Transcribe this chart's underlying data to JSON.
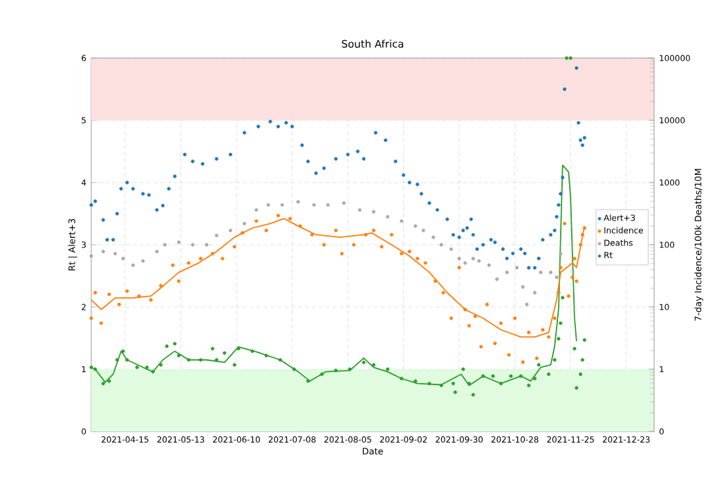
{
  "chart_data": {
    "type": "scatter",
    "title": "South Africa",
    "xlabel": "Date",
    "ylabel": "Rt | Alert+3",
    "y2label": "7-day Incidence/100k Deaths/10M",
    "xlim": [
      "2021-03-29",
      "2022-01-06"
    ],
    "xticks": [
      "2021-04-15",
      "2021-05-13",
      "2021-06-10",
      "2021-07-08",
      "2021-08-05",
      "2021-09-02",
      "2021-09-30",
      "2021-10-28",
      "2021-11-25",
      "2021-12-23"
    ],
    "ylim": [
      0,
      6
    ],
    "yticks": [
      0,
      1,
      2,
      3,
      4,
      5,
      6
    ],
    "log": "y2",
    "y2lim": [
      0.1,
      100000
    ],
    "y2ticks": [
      {
        "value": 0.1,
        "label": "0"
      },
      1,
      10,
      100,
      1000,
      10000,
      100000
    ],
    "grid": true,
    "legend": "right",
    "bands": [
      {
        "axis": "y",
        "from": 5,
        "to": 6,
        "color": "#fde0e0"
      },
      {
        "axis": "y",
        "from": 0,
        "to": 1,
        "color": "#e0fbe0"
      }
    ],
    "series": [
      {
        "name": "Alert+3",
        "type": "scatter",
        "marker": "circle",
        "color": "#1f77b4",
        "x": [
          "2021-03-29",
          "2021-03-31",
          "2021-04-04",
          "2021-04-06",
          "2021-04-09",
          "2021-04-11",
          "2021-04-13",
          "2021-04-16",
          "2021-04-19",
          "2021-04-24",
          "2021-04-27",
          "2021-05-01",
          "2021-05-04",
          "2021-05-07",
          "2021-05-10",
          "2021-05-15",
          "2021-05-19",
          "2021-05-24",
          "2021-05-31",
          "2021-06-07",
          "2021-06-14",
          "2021-06-21",
          "2021-06-27",
          "2021-07-01",
          "2021-07-05",
          "2021-07-08",
          "2021-07-13",
          "2021-07-16",
          "2021-07-20",
          "2021-07-24",
          "2021-07-30",
          "2021-08-05",
          "2021-08-10",
          "2021-08-13",
          "2021-08-19",
          "2021-08-24",
          "2021-08-29",
          "2021-09-02",
          "2021-09-05",
          "2021-09-09",
          "2021-09-11",
          "2021-09-15",
          "2021-09-19",
          "2021-09-24",
          "2021-09-27",
          "2021-09-30",
          "2021-10-02",
          "2021-10-04",
          "2021-10-06",
          "2021-10-07",
          "2021-10-09",
          "2021-10-12",
          "2021-10-16",
          "2021-10-18",
          "2021-10-22",
          "2021-10-24",
          "2021-10-27",
          "2021-10-31",
          "2021-11-02",
          "2021-11-04",
          "2021-11-07",
          "2021-11-09",
          "2021-11-11",
          "2021-11-15",
          "2021-11-17",
          "2021-11-18",
          "2021-11-19",
          "2021-11-20",
          "2021-11-21",
          "2021-11-22",
          "2021-11-28",
          "2021-11-29",
          "2021-11-30",
          "2021-12-01",
          "2021-12-02"
        ],
        "values": [
          3.64,
          3.7,
          3.4,
          3.08,
          3.08,
          3.5,
          3.9,
          4.0,
          3.9,
          3.82,
          3.8,
          3.56,
          3.63,
          3.9,
          4.1,
          4.45,
          4.34,
          4.3,
          4.38,
          4.45,
          4.8,
          4.9,
          4.98,
          4.9,
          4.96,
          4.9,
          4.6,
          4.34,
          4.15,
          4.23,
          4.38,
          4.45,
          4.5,
          4.38,
          4.8,
          4.68,
          4.34,
          4.12,
          4.0,
          3.97,
          3.82,
          3.67,
          3.56,
          3.41,
          3.16,
          3.12,
          3.23,
          3.27,
          3.41,
          3.16,
          2.93,
          3.0,
          3.08,
          3.04,
          2.93,
          2.78,
          2.86,
          2.93,
          2.86,
          2.63,
          2.63,
          2.78,
          3.08,
          3.16,
          3.23,
          3.45,
          3.64,
          3.82,
          4.08,
          5.5,
          5.84,
          4.96,
          4.68,
          4.6,
          4.72
        ]
      },
      {
        "name": "Incidence",
        "type": "scatter",
        "marker": "circle",
        "axis": "y2",
        "color": "#ff7f0e",
        "x": [
          "2021-03-29",
          "2021-03-31",
          "2021-04-03",
          "2021-04-07",
          "2021-04-12",
          "2021-04-16",
          "2021-04-22",
          "2021-04-28",
          "2021-05-03",
          "2021-05-09",
          "2021-05-12",
          "2021-05-17",
          "2021-05-23",
          "2021-05-29",
          "2021-06-03",
          "2021-06-09",
          "2021-06-13",
          "2021-06-20",
          "2021-06-25",
          "2021-07-01",
          "2021-07-07",
          "2021-07-12",
          "2021-07-18",
          "2021-07-24",
          "2021-07-30",
          "2021-08-02",
          "2021-08-08",
          "2021-08-14",
          "2021-08-18",
          "2021-08-22",
          "2021-08-27",
          "2021-09-01",
          "2021-09-05",
          "2021-09-09",
          "2021-09-13",
          "2021-09-18",
          "2021-09-22",
          "2021-09-26",
          "2021-09-30",
          "2021-10-03",
          "2021-10-05",
          "2021-10-08",
          "2021-10-11",
          "2021-10-14",
          "2021-10-18",
          "2021-10-21",
          "2021-10-25",
          "2021-10-28",
          "2021-11-01",
          "2021-11-04",
          "2021-11-08",
          "2021-11-11",
          "2021-11-14",
          "2021-11-17",
          "2021-11-19",
          "2021-11-20",
          "2021-11-22",
          "2021-11-24",
          "2021-11-26",
          "2021-11-27",
          "2021-11-28",
          "2021-11-30",
          "2021-12-01",
          "2021-12-02"
        ],
        "values": [
          6.6,
          17,
          5.5,
          16,
          11,
          18,
          15,
          13,
          22,
          47,
          26,
          51,
          60,
          72,
          60,
          93,
          155,
          240,
          170,
          295,
          263,
          200,
          145,
          100,
          170,
          72,
          100,
          145,
          170,
          93,
          145,
          72,
          78,
          60,
          51,
          26,
          17,
          6.6,
          43,
          9.1,
          5.0,
          7.1,
          2.3,
          11,
          2.6,
          5.5,
          1.7,
          6.6,
          1.3,
          3.9,
          1.5,
          4.3,
          3.3,
          6.6,
          17,
          43,
          219,
          15,
          30,
          60,
          26,
          100,
          145,
          186
        ]
      },
      {
        "type": "line",
        "marker": "none",
        "axis": "y2",
        "color": "#ff7f0e",
        "x": [
          "2021-03-29",
          "2021-04-03",
          "2021-04-10",
          "2021-04-19",
          "2021-04-28",
          "2021-05-05",
          "2021-05-12",
          "2021-05-22",
          "2021-05-31",
          "2021-06-09",
          "2021-06-18",
          "2021-06-27",
          "2021-07-04",
          "2021-07-11",
          "2021-07-20",
          "2021-08-01",
          "2021-08-13",
          "2021-08-17",
          "2021-08-27",
          "2021-09-05",
          "2021-09-15",
          "2021-09-24",
          "2021-10-03",
          "2021-10-12",
          "2021-10-21",
          "2021-10-31",
          "2021-11-07",
          "2021-11-14",
          "2021-11-18",
          "2021-11-20",
          "2021-11-26",
          "2021-11-28",
          "2021-12-02"
        ],
        "values": [
          13,
          9.1,
          14,
          14,
          15,
          23,
          36,
          51,
          78,
          132,
          186,
          219,
          263,
          200,
          145,
          132,
          145,
          155,
          100,
          66,
          36,
          17,
          9.1,
          6.6,
          4.3,
          3.3,
          3.3,
          3.9,
          13,
          36,
          51,
          43,
          200
        ]
      },
      {
        "name": "Deaths",
        "type": "scatter",
        "marker": "circle",
        "axis": "y2",
        "color": "#a9a9a9",
        "x": [
          "2021-03-29",
          "2021-04-04",
          "2021-04-10",
          "2021-04-14",
          "2021-04-19",
          "2021-04-24",
          "2021-05-01",
          "2021-05-05",
          "2021-05-12",
          "2021-05-19",
          "2021-05-26",
          "2021-05-31",
          "2021-06-07",
          "2021-06-14",
          "2021-06-20",
          "2021-06-26",
          "2021-07-03",
          "2021-07-11",
          "2021-07-19",
          "2021-07-26",
          "2021-08-03",
          "2021-08-11",
          "2021-08-18",
          "2021-08-25",
          "2021-09-01",
          "2021-09-08",
          "2021-09-12",
          "2021-09-17",
          "2021-09-21",
          "2021-09-26",
          "2021-09-30",
          "2021-10-03",
          "2021-10-07",
          "2021-10-10",
          "2021-10-15",
          "2021-10-19",
          "2021-10-24",
          "2021-10-29",
          "2021-11-01",
          "2021-11-03",
          "2021-11-07",
          "2021-11-10",
          "2021-11-15",
          "2021-11-18",
          "2021-11-20"
        ],
        "values": [
          66,
          78,
          72,
          60,
          47,
          55,
          78,
          100,
          110,
          100,
          100,
          141,
          170,
          219,
          363,
          437,
          437,
          490,
          437,
          437,
          468,
          363,
          339,
          282,
          240,
          200,
          170,
          132,
          100,
          85,
          60,
          51,
          60,
          55,
          47,
          28,
          36,
          43,
          21,
          11,
          17,
          36,
          36,
          30,
          72
        ]
      },
      {
        "name": "Rt",
        "type": "scatter",
        "marker": "circle",
        "color": "#2ca02c",
        "x": [
          "2021-03-29",
          "2021-03-31",
          "2021-04-04",
          "2021-04-07",
          "2021-04-11",
          "2021-04-14",
          "2021-04-16",
          "2021-04-21",
          "2021-04-26",
          "2021-04-29",
          "2021-05-03",
          "2021-05-06",
          "2021-05-10",
          "2021-05-12",
          "2021-05-17",
          "2021-05-23",
          "2021-05-29",
          "2021-05-31",
          "2021-06-04",
          "2021-06-09",
          "2021-06-11",
          "2021-06-18",
          "2021-06-25",
          "2021-07-02",
          "2021-07-09",
          "2021-07-16",
          "2021-07-23",
          "2021-07-30",
          "2021-08-06",
          "2021-08-13",
          "2021-08-18",
          "2021-08-25",
          "2021-09-01",
          "2021-09-08",
          "2021-09-15",
          "2021-09-21",
          "2021-09-27",
          "2021-09-28",
          "2021-10-02",
          "2021-10-05",
          "2021-10-07",
          "2021-10-12",
          "2021-10-17",
          "2021-10-21",
          "2021-10-26",
          "2021-10-31",
          "2021-11-04",
          "2021-11-07",
          "2021-11-09",
          "2021-11-14",
          "2021-11-17",
          "2021-11-19",
          "2021-11-20",
          "2021-11-21",
          "2021-11-23",
          "2021-11-25",
          "2021-11-27",
          "2021-11-28",
          "2021-11-30",
          "2021-12-01",
          "2021-12-02"
        ],
        "values": [
          1.03,
          1.0,
          0.77,
          0.81,
          1.15,
          1.29,
          1.15,
          1.03,
          1.03,
          0.96,
          1.07,
          1.37,
          1.41,
          1.22,
          1.15,
          1.15,
          1.33,
          1.15,
          1.26,
          1.07,
          1.33,
          1.29,
          1.22,
          1.15,
          1.0,
          0.81,
          0.92,
          0.98,
          1.0,
          1.11,
          1.07,
          1.0,
          0.85,
          0.81,
          0.77,
          0.74,
          0.77,
          0.63,
          1.0,
          0.77,
          0.59,
          0.89,
          0.89,
          0.77,
          0.89,
          0.89,
          0.74,
          0.85,
          1.07,
          0.92,
          1.15,
          1.49,
          1.74,
          2.15,
          6.0,
          6.0,
          1.33,
          0.7,
          0.92,
          1.15,
          1.47
        ]
      },
      {
        "type": "line",
        "marker": "none",
        "color": "#2ca02c",
        "x": [
          "2021-03-29",
          "2021-03-31",
          "2021-04-05",
          "2021-04-09",
          "2021-04-13",
          "2021-04-16",
          "2021-04-24",
          "2021-04-29",
          "2021-05-04",
          "2021-05-10",
          "2021-05-17",
          "2021-05-26",
          "2021-06-04",
          "2021-06-11",
          "2021-06-20",
          "2021-07-02",
          "2021-07-11",
          "2021-07-17",
          "2021-07-25",
          "2021-08-06",
          "2021-08-13",
          "2021-08-18",
          "2021-08-25",
          "2021-09-01",
          "2021-09-09",
          "2021-09-21",
          "2021-10-01",
          "2021-10-05",
          "2021-10-12",
          "2021-10-21",
          "2021-10-31",
          "2021-11-05",
          "2021-11-10",
          "2021-11-15",
          "2021-11-17",
          "2021-11-19",
          "2021-11-21",
          "2021-11-24",
          "2021-11-25",
          "2021-11-27",
          "2021-11-28"
        ],
        "values": [
          1.03,
          1.0,
          0.79,
          0.92,
          1.29,
          1.15,
          1.03,
          0.96,
          1.15,
          1.29,
          1.15,
          1.15,
          1.11,
          1.36,
          1.28,
          1.15,
          0.96,
          0.81,
          0.96,
          0.98,
          1.18,
          1.03,
          0.96,
          0.85,
          0.77,
          0.75,
          0.92,
          0.74,
          0.89,
          0.77,
          0.89,
          0.81,
          1.03,
          1.07,
          1.37,
          1.97,
          4.28,
          4.17,
          3.76,
          1.82,
          1.45
        ]
      }
    ]
  }
}
